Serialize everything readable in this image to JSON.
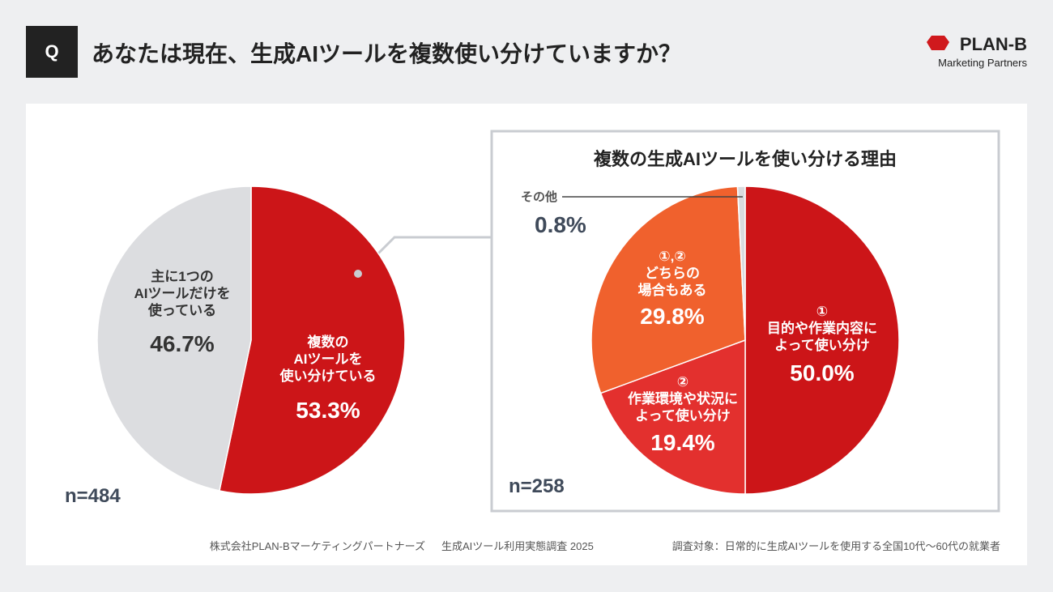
{
  "header": {
    "badge": "Q",
    "title": "あなたは現在、生成AIツールを複数使い分けていますか？",
    "logo": "PLAN-B",
    "logo_sub": "Marketing Partners"
  },
  "chart_data": [
    {
      "type": "pie",
      "categories": [
        "複数の\nAIツールを\n使い分けている",
        "主に1つの\nAIツールだけを\n使っている"
      ],
      "values": [
        53.3,
        46.7
      ],
      "value_labels": [
        "53.3%",
        "46.7%"
      ],
      "colors": [
        "#cc1518",
        "#dcdde0"
      ],
      "note": "n=484"
    },
    {
      "type": "pie",
      "title": "複数の生成AIツールを使い分ける理由",
      "categories": [
        "①\n目的や作業内容に\nよって使い分け",
        "②\n作業環境や状況に\nよって使い分け",
        "①,②\nどちらの\n場合もある",
        "その他"
      ],
      "values": [
        50.0,
        19.4,
        29.8,
        0.8
      ],
      "value_labels": [
        "50.0%",
        "19.4%",
        "29.8%",
        "0.8%"
      ],
      "colors": [
        "#cc1518",
        "#e3302e",
        "#f0612d",
        "#d9dbde"
      ],
      "note": "n=258"
    }
  ],
  "footer": [
    "株式会社PLAN-Bマーケティングパートナーズ",
    "生成AIツール利用実態調査 2025",
    "調査対象：日常的に生成AIツールを使用する全国10代〜60代の就業者"
  ]
}
